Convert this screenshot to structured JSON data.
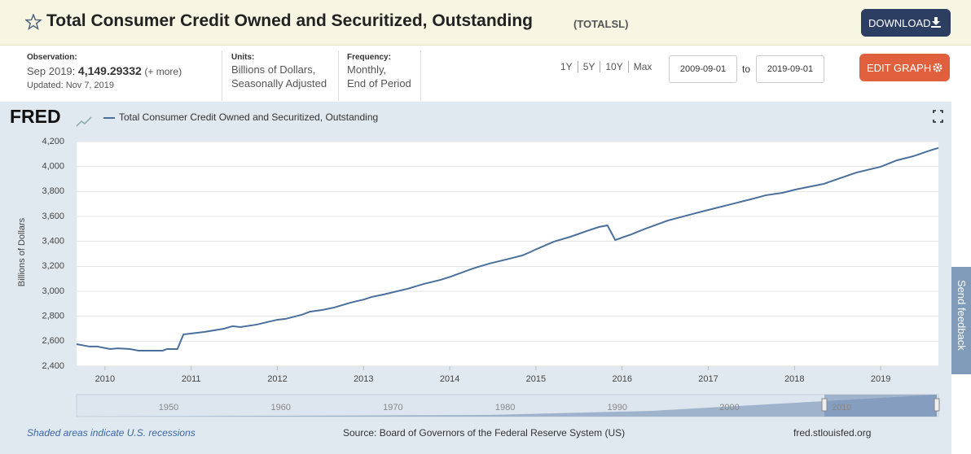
{
  "header": {
    "title": "Total Consumer Credit Owned and Securitized, Outstanding",
    "series_id": "(TOTALSL)",
    "download": "DOWNLOAD"
  },
  "info": {
    "observation_label": "Observation:",
    "observation_date": "Sep 2019:",
    "observation_value": "4,149.29332",
    "more": "(+ more)",
    "updated": "Updated: Nov 7, 2019",
    "units_label": "Units:",
    "units": [
      "Billions of Dollars,",
      "Seasonally Adjusted"
    ],
    "frequency_label": "Frequency:",
    "frequency": [
      "Monthly,",
      "End of Period"
    ]
  },
  "range": {
    "links": [
      "1Y",
      "5Y",
      "10Y",
      "Max"
    ],
    "start": "2009-09-01",
    "to": "to",
    "end": "2019-09-01",
    "edit": "EDIT GRAPH"
  },
  "chart_data": {
    "type": "line",
    "logo": "FRED",
    "y_label": "Billions of Dollars",
    "x": [
      2009.67,
      2009.82,
      2009.91,
      2010.06,
      2010.15,
      2010.29,
      2010.39,
      2010.67,
      2010.72,
      2010.84,
      2010.91,
      2011.15,
      2011.38,
      2011.48,
      2011.57,
      2011.76,
      2012.0,
      2012.09,
      2012.28,
      2012.38,
      2012.52,
      2012.66,
      2012.85,
      2013.01,
      2013.09,
      2013.23,
      2013.51,
      2013.7,
      2013.89,
      2014.01,
      2014.27,
      2014.46,
      2014.65,
      2014.84,
      2014.93,
      2015.01,
      2015.21,
      2015.4,
      2015.59,
      2015.73,
      2015.83,
      2015.92,
      2016.11,
      2016.25,
      2016.53,
      2016.82,
      2017.0,
      2017.3,
      2017.49,
      2017.67,
      2017.86,
      2018.01,
      2018.15,
      2018.34,
      2018.53,
      2018.72,
      2019.0,
      2019.19,
      2019.38,
      2019.57,
      2019.67
    ],
    "series": [
      {
        "name": "Total Consumer Credit Owned and Securitized, Outstanding",
        "color": "#4a6f9c",
        "values": [
          2576,
          2557,
          2557,
          2537,
          2543,
          2537,
          2524,
          2524,
          2537,
          2537,
          2654,
          2674,
          2700,
          2720,
          2713,
          2733,
          2772,
          2778,
          2811,
          2837,
          2850,
          2870,
          2909,
          2935,
          2954,
          2974,
          3020,
          3059,
          3091,
          3117,
          3183,
          3222,
          3254,
          3287,
          3313,
          3339,
          3398,
          3437,
          3483,
          3515,
          3528,
          3411,
          3457,
          3496,
          3567,
          3620,
          3652,
          3704,
          3737,
          3770,
          3789,
          3815,
          3835,
          3861,
          3907,
          3952,
          3998,
          4050,
          4083,
          4128,
          4149.29332
        ]
      }
    ],
    "xlim": [
      2009.67,
      2019.67
    ],
    "xticks": [
      2010,
      2011,
      2012,
      2013,
      2014,
      2015,
      2016,
      2017,
      2018,
      2019
    ],
    "ylim": [
      2400,
      4200
    ],
    "yticks": [
      {
        "value": 2400,
        "label": "2,400"
      },
      {
        "value": 2600,
        "label": "2,600"
      },
      {
        "value": 2800,
        "label": "2,800"
      },
      {
        "value": 3000,
        "label": "3,000"
      },
      {
        "value": 3200,
        "label": "3,200"
      },
      {
        "value": 3400,
        "label": "3,400"
      },
      {
        "value": 3600,
        "label": "3,600"
      },
      {
        "value": 3800,
        "label": "3,800"
      },
      {
        "value": 4000,
        "label": "4,000"
      },
      {
        "value": 4200,
        "label": "4,200"
      }
    ],
    "grid": true
  },
  "navigator": {
    "years": [
      1950,
      1960,
      1970,
      1980,
      1990,
      2000,
      2010
    ]
  },
  "footer": {
    "recessions": "Shaded areas indicate U.S. recessions",
    "source": "Source: Board of Governors of the Federal Reserve System (US)",
    "site": "fred.stlouisfed.org"
  },
  "feedback": "Send feedback"
}
